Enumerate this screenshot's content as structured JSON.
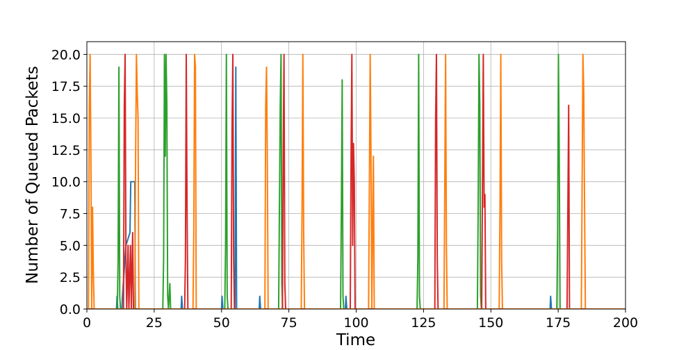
{
  "chart_data": {
    "type": "line",
    "title": "",
    "xlabel": "Time",
    "ylabel": "Number of Queued Packets",
    "xlim": [
      0,
      200
    ],
    "ylim": [
      0,
      21
    ],
    "xticks": [
      "0",
      "25",
      "50",
      "75",
      "100",
      "125",
      "150",
      "175",
      "200"
    ],
    "yticks": [
      "0.0",
      "2.5",
      "5.0",
      "7.5",
      "10.0",
      "12.5",
      "15.0",
      "17.5",
      "20.0"
    ],
    "grid": true,
    "series": [
      {
        "color": "#1f77b4",
        "points": [
          [
            0,
            0
          ],
          [
            11,
            0
          ],
          [
            11.2,
            1
          ],
          [
            11.5,
            0
          ],
          [
            13,
            0
          ],
          [
            13.2,
            1
          ],
          [
            14.5,
            5
          ],
          [
            16,
            6
          ],
          [
            16.3,
            10
          ],
          [
            17.8,
            10
          ],
          [
            18,
            0
          ],
          [
            35,
            0
          ],
          [
            35.2,
            1
          ],
          [
            35.5,
            0
          ],
          [
            50,
            0
          ],
          [
            50.2,
            1
          ],
          [
            50.5,
            0
          ],
          [
            55,
            0
          ],
          [
            55.3,
            19
          ],
          [
            55.6,
            0
          ],
          [
            64,
            0
          ],
          [
            64.2,
            1
          ],
          [
            64.5,
            0
          ],
          [
            96,
            0
          ],
          [
            96.2,
            1
          ],
          [
            96.5,
            0
          ],
          [
            172,
            0
          ],
          [
            172.2,
            1
          ],
          [
            172.5,
            0
          ],
          [
            200,
            0
          ]
        ]
      },
      {
        "color": "#2ca02c",
        "points": [
          [
            0,
            0
          ],
          [
            11.3,
            0
          ],
          [
            11.6,
            4
          ],
          [
            11.9,
            19
          ],
          [
            12.2,
            1
          ],
          [
            12.5,
            0
          ],
          [
            28.2,
            0
          ],
          [
            28.5,
            4
          ],
          [
            28.8,
            20
          ],
          [
            29.1,
            12
          ],
          [
            29.4,
            20
          ],
          [
            29.7,
            16
          ],
          [
            30,
            1
          ],
          [
            30.3,
            0
          ],
          [
            30.8,
            2
          ],
          [
            31.1,
            0
          ],
          [
            51.2,
            0
          ],
          [
            51.5,
            5
          ],
          [
            51.8,
            20
          ],
          [
            52.1,
            1
          ],
          [
            52.4,
            0
          ],
          [
            71.2,
            0
          ],
          [
            71.5,
            8
          ],
          [
            71.8,
            16
          ],
          [
            72.1,
            20
          ],
          [
            72.4,
            2
          ],
          [
            72.7,
            0
          ],
          [
            94.2,
            0
          ],
          [
            94.5,
            8
          ],
          [
            94.8,
            18
          ],
          [
            95.1,
            1
          ],
          [
            95.4,
            0
          ],
          [
            122.6,
            0
          ],
          [
            122.9,
            4
          ],
          [
            123.2,
            20
          ],
          [
            123.5,
            1
          ],
          [
            123.8,
            0
          ],
          [
            145,
            0
          ],
          [
            145.3,
            8
          ],
          [
            145.6,
            20
          ],
          [
            145.9,
            16
          ],
          [
            146.2,
            1
          ],
          [
            146.5,
            0
          ],
          [
            174.5,
            0
          ],
          [
            174.8,
            6
          ],
          [
            175.1,
            20
          ],
          [
            175.4,
            12
          ],
          [
            175.7,
            0
          ],
          [
            200,
            0
          ]
        ]
      },
      {
        "color": "#d62728",
        "points": [
          [
            0,
            0
          ],
          [
            13.6,
            0
          ],
          [
            13.9,
            16
          ],
          [
            14.2,
            20
          ],
          [
            14.5,
            4
          ],
          [
            14.8,
            0
          ],
          [
            15.3,
            5
          ],
          [
            15.6,
            0
          ],
          [
            16.2,
            5
          ],
          [
            16.5,
            0
          ],
          [
            17,
            6
          ],
          [
            17.3,
            0
          ],
          [
            36.3,
            0
          ],
          [
            36.6,
            4
          ],
          [
            36.9,
            20
          ],
          [
            37.2,
            8
          ],
          [
            37.5,
            0
          ],
          [
            53.6,
            0
          ],
          [
            53.9,
            14
          ],
          [
            54.2,
            20
          ],
          [
            54.5,
            4
          ],
          [
            54.8,
            0
          ],
          [
            72.6,
            0
          ],
          [
            72.9,
            12
          ],
          [
            73.2,
            20
          ],
          [
            73.5,
            2
          ],
          [
            73.8,
            0
          ],
          [
            97.8,
            0
          ],
          [
            98.1,
            12
          ],
          [
            98.4,
            20
          ],
          [
            98.7,
            5
          ],
          [
            99,
            13
          ],
          [
            99.3,
            10
          ],
          [
            99.6,
            0
          ],
          [
            129.2,
            0
          ],
          [
            129.5,
            15
          ],
          [
            129.8,
            20
          ],
          [
            130.1,
            4
          ],
          [
            130.4,
            0
          ],
          [
            146.6,
            0
          ],
          [
            146.9,
            10
          ],
          [
            147.2,
            20
          ],
          [
            147.5,
            8
          ],
          [
            147.8,
            9
          ],
          [
            148.1,
            0
          ],
          [
            178.3,
            0
          ],
          [
            178.6,
            8
          ],
          [
            178.9,
            16
          ],
          [
            179.2,
            0
          ],
          [
            200,
            0
          ]
        ]
      },
      {
        "color": "#ff7f0e",
        "points": [
          [
            0,
            0
          ],
          [
            0.6,
            0
          ],
          [
            0.9,
            16
          ],
          [
            1.2,
            20
          ],
          [
            1.5,
            12
          ],
          [
            1.8,
            0
          ],
          [
            2.1,
            8
          ],
          [
            2.4,
            3
          ],
          [
            2.7,
            0
          ],
          [
            17.8,
            0
          ],
          [
            18.1,
            12
          ],
          [
            18.4,
            20
          ],
          [
            18.7,
            17
          ],
          [
            19,
            15
          ],
          [
            19.3,
            0
          ],
          [
            39.4,
            0
          ],
          [
            39.7,
            6
          ],
          [
            40,
            20
          ],
          [
            40.3,
            19
          ],
          [
            40.6,
            0
          ],
          [
            66.1,
            0
          ],
          [
            66.4,
            16
          ],
          [
            66.7,
            19
          ],
          [
            67,
            12
          ],
          [
            67.3,
            0
          ],
          [
            79.6,
            0
          ],
          [
            79.9,
            8
          ],
          [
            80.2,
            20
          ],
          [
            80.5,
            6
          ],
          [
            80.8,
            0
          ],
          [
            104.6,
            0
          ],
          [
            104.9,
            10
          ],
          [
            105.2,
            20
          ],
          [
            105.5,
            12
          ],
          [
            105.8,
            0
          ],
          [
            106.4,
            12
          ],
          [
            106.7,
            0
          ],
          [
            132.6,
            0
          ],
          [
            132.9,
            10
          ],
          [
            133.2,
            20
          ],
          [
            133.5,
            5
          ],
          [
            133.8,
            0
          ],
          [
            153.1,
            0
          ],
          [
            153.4,
            8
          ],
          [
            153.7,
            20
          ],
          [
            154,
            4
          ],
          [
            154.3,
            0
          ],
          [
            183.6,
            0
          ],
          [
            183.9,
            10
          ],
          [
            184.2,
            20
          ],
          [
            184.5,
            17
          ],
          [
            184.8,
            8
          ],
          [
            185.1,
            0
          ],
          [
            200,
            0
          ]
        ]
      }
    ]
  }
}
